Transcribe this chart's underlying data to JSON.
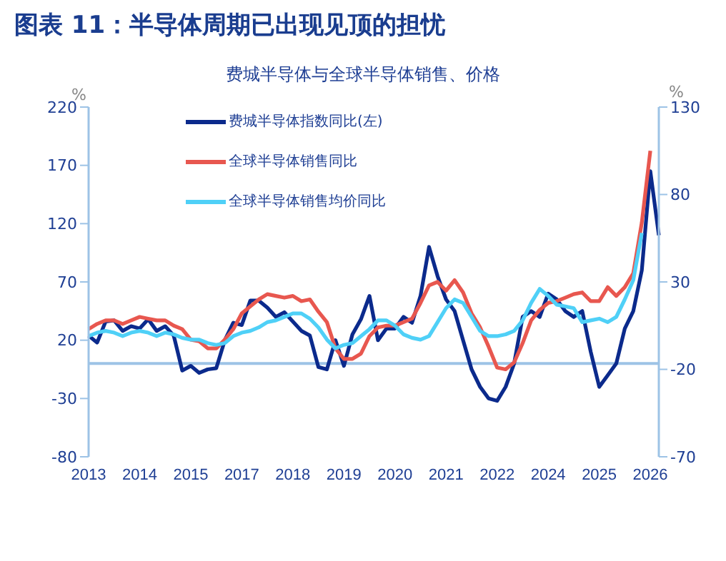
{
  "chart_data": {
    "type": "line",
    "title": "图表 11：半导体周期已出现见顶的担忧",
    "subtitle": "费城半导体与全球半导体销售、价格",
    "ylabel": "%",
    "y2label": "%",
    "categories": [
      "2013",
      null,
      null,
      null,
      null,
      null,
      "2014",
      null,
      null,
      null,
      null,
      null,
      "2015",
      null,
      null,
      null,
      null,
      null,
      "2017",
      null,
      null,
      null,
      null,
      null,
      "2018",
      null,
      null,
      null,
      null,
      null,
      "2019",
      null,
      null,
      null,
      null,
      null,
      "2020",
      null,
      null,
      null,
      null,
      null,
      "2021",
      null,
      null,
      null,
      null,
      null,
      "2022",
      null,
      null,
      null,
      null,
      null,
      "2024",
      null,
      null,
      null,
      null,
      null,
      "2025",
      null,
      null,
      null,
      null,
      null,
      "2026",
      null
    ],
    "series": [
      {
        "name": "费城半导体指数同比(左)",
        "color": "#0b2a8c",
        "values": [
          24,
          18,
          36,
          37,
          28,
          32,
          30,
          38,
          28,
          32,
          24,
          -6,
          -2,
          -8,
          -5,
          -4,
          20,
          35,
          33,
          54,
          54,
          48,
          40,
          44,
          36,
          28,
          24,
          -3,
          -5,
          20,
          -2,
          25,
          38,
          58,
          20,
          30,
          30,
          40,
          35,
          58,
          100,
          75,
          55,
          45,
          20,
          -5,
          -20,
          -30,
          -32,
          -20,
          0,
          40,
          45,
          40,
          60,
          55,
          45,
          40,
          45,
          10,
          -20,
          -10,
          0,
          30,
          45,
          80,
          165,
          110
        ]
      },
      {
        "name": "全球半导体销售同比",
        "color": "#e8574f",
        "axis": "y2",
        "values": [
          3,
          6,
          8,
          8,
          6,
          8,
          10,
          9,
          8,
          8,
          5,
          3,
          -3,
          -4,
          -8,
          -8,
          -3,
          3,
          12,
          16,
          20,
          23,
          22,
          21,
          22,
          19,
          20,
          13,
          7,
          -8,
          -14,
          -14,
          -11,
          -1,
          4,
          5,
          5,
          7,
          9,
          18,
          28,
          30,
          25,
          31,
          24,
          12,
          4,
          -7,
          -19,
          -20,
          -16,
          -5,
          8,
          14,
          18,
          19,
          21,
          23,
          24,
          19,
          19,
          27,
          22,
          27,
          35,
          64,
          105,
          null
        ]
      },
      {
        "name": "全球半导体销售均价同比",
        "color": "#4fd0f7",
        "axis": "y2",
        "values": [
          -1,
          1,
          2,
          1,
          -1,
          1,
          2,
          1,
          -1,
          1,
          0,
          -2,
          -3,
          -3,
          -5,
          -6,
          -5,
          -1,
          1,
          2,
          4,
          7,
          8,
          10,
          12,
          12,
          9,
          4,
          -3,
          -8,
          -6,
          -5,
          -1,
          3,
          8,
          8,
          5,
          0,
          -2,
          -3,
          -1,
          7,
          15,
          20,
          18,
          10,
          2,
          -1,
          -1,
          0,
          2,
          8,
          18,
          26,
          22,
          17,
          16,
          15,
          7,
          8,
          9,
          7,
          10,
          20,
          31,
          58,
          null,
          null
        ]
      }
    ],
    "ylim": [
      -80,
      220
    ],
    "yticks": [
      -80,
      -30,
      20,
      70,
      120,
      170,
      220
    ],
    "y2lim": [
      -70,
      130
    ],
    "y2ticks": [
      -70,
      -20,
      30,
      80,
      130
    ],
    "ref_lines": [
      {
        "axis": "y",
        "value": 0,
        "color": "#9dc3e6"
      }
    ],
    "legend": "top left",
    "grid": false,
    "marker": "none"
  }
}
